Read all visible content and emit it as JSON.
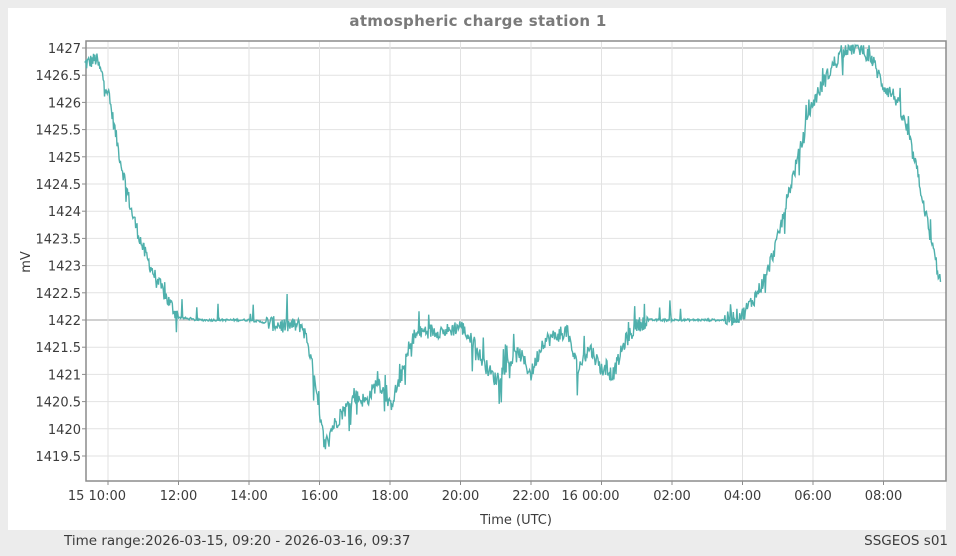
{
  "chart": {
    "title": "atmospheric charge station 1",
    "ylabel": "mV",
    "xlabel": "Time (UTC)",
    "line_color": "#4fb0ac"
  },
  "footer": {
    "time_range": "Time range:2026-03-15, 09:20 - 2026-03-16, 09:37",
    "station": "SSGEOS s01"
  },
  "chart_data": {
    "type": "line",
    "title": "atmospheric charge station 1",
    "xlabel": "Time (UTC)",
    "ylabel": "mV",
    "ylim": [
      1419.0,
      1427.1
    ],
    "xlim": [
      "2026-03-15 09:20",
      "2026-03-16 09:37"
    ],
    "grid": true,
    "legend": "none",
    "y_ticks": [
      "1419.5",
      "1420",
      "1420.5",
      "1421",
      "1421.5",
      "1422",
      "1422.5",
      "1423",
      "1423.5",
      "1424",
      "1424.5",
      "1425",
      "1425.5",
      "1426",
      "1426.5",
      "1427"
    ],
    "x_ticks": [
      "15 10:00",
      "12:00",
      "14:00",
      "16:00",
      "18:00",
      "20:00",
      "22:00",
      "16 00:00",
      "02:00",
      "04:00",
      "06:00",
      "08:00"
    ],
    "series": [
      {
        "name": "station 1",
        "x": [
          "09:20",
          "09:40",
          "10:00",
          "10:20",
          "10:40",
          "11:00",
          "11:20",
          "11:40",
          "12:00",
          "12:30",
          "13:00",
          "13:30",
          "14:00",
          "14:30",
          "15:00",
          "15:30",
          "15:40",
          "15:50",
          "16:00",
          "16:10",
          "16:20",
          "16:40",
          "17:00",
          "17:20",
          "17:40",
          "18:00",
          "18:20",
          "18:40",
          "19:00",
          "19:20",
          "19:40",
          "20:00",
          "20:20",
          "20:40",
          "21:00",
          "21:20",
          "21:40",
          "22:00",
          "22:20",
          "22:40",
          "23:00",
          "23:20",
          "23:40",
          "00:00",
          "00:20",
          "00:40",
          "01:00",
          "01:20",
          "01:40",
          "02:00",
          "02:30",
          "03:00",
          "03:30",
          "04:00",
          "04:20",
          "04:40",
          "05:00",
          "05:20",
          "05:40",
          "06:00",
          "06:20",
          "06:40",
          "07:00",
          "07:20",
          "07:40",
          "08:00",
          "08:20",
          "08:40",
          "09:00",
          "09:20",
          "09:37"
        ],
        "values": [
          1426.7,
          1426.8,
          1426.2,
          1425.0,
          1424.0,
          1423.3,
          1422.8,
          1422.4,
          1422.05,
          1422.0,
          1422.0,
          1422.0,
          1422.0,
          1421.95,
          1421.9,
          1421.9,
          1421.6,
          1421.0,
          1420.2,
          1419.7,
          1420.0,
          1420.3,
          1420.6,
          1420.5,
          1420.9,
          1420.4,
          1421.0,
          1421.7,
          1421.8,
          1421.8,
          1421.8,
          1421.9,
          1421.6,
          1421.2,
          1420.9,
          1421.2,
          1421.4,
          1421.0,
          1421.6,
          1421.7,
          1421.8,
          1421.1,
          1421.5,
          1421.1,
          1421.0,
          1421.6,
          1421.9,
          1422.0,
          1422.0,
          1422.0,
          1422.0,
          1422.0,
          1422.0,
          1422.1,
          1422.4,
          1422.8,
          1423.5,
          1424.4,
          1425.2,
          1426.0,
          1426.4,
          1426.8,
          1427.0,
          1427.0,
          1426.8,
          1426.3,
          1426.1,
          1425.5,
          1424.6,
          1423.5,
          1422.7
        ]
      }
    ]
  }
}
